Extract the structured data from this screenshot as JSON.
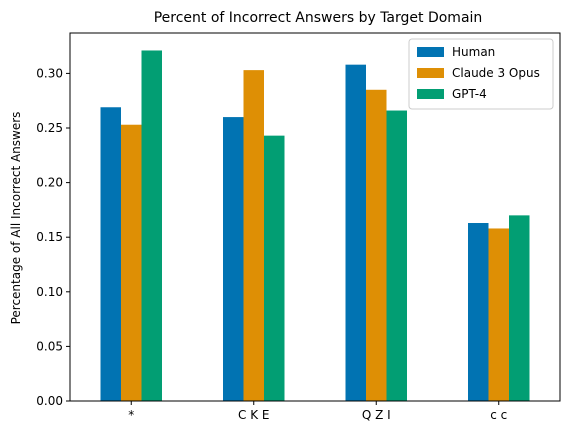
{
  "chart_data": {
    "type": "bar",
    "title": "Percent of Incorrect Answers by Target Domain",
    "xlabel": "",
    "ylabel": "Percentage of All Incorrect Answers",
    "categories": [
      "*",
      "C K E",
      "Q Z I",
      "c c"
    ],
    "series": [
      {
        "name": "Human",
        "color": "#0173b2",
        "values": [
          0.269,
          0.26,
          0.308,
          0.163
        ]
      },
      {
        "name": "Claude 3 Opus",
        "color": "#de8f05",
        "values": [
          0.253,
          0.303,
          0.285,
          0.158
        ]
      },
      {
        "name": "GPT-4",
        "color": "#029e73",
        "values": [
          0.321,
          0.243,
          0.266,
          0.17
        ]
      }
    ],
    "ylim": [
      0,
      0.337
    ],
    "yticks": [
      0.0,
      0.05,
      0.1,
      0.15,
      0.2,
      0.25,
      0.3
    ],
    "legend_position": "top-right",
    "grid": false
  }
}
